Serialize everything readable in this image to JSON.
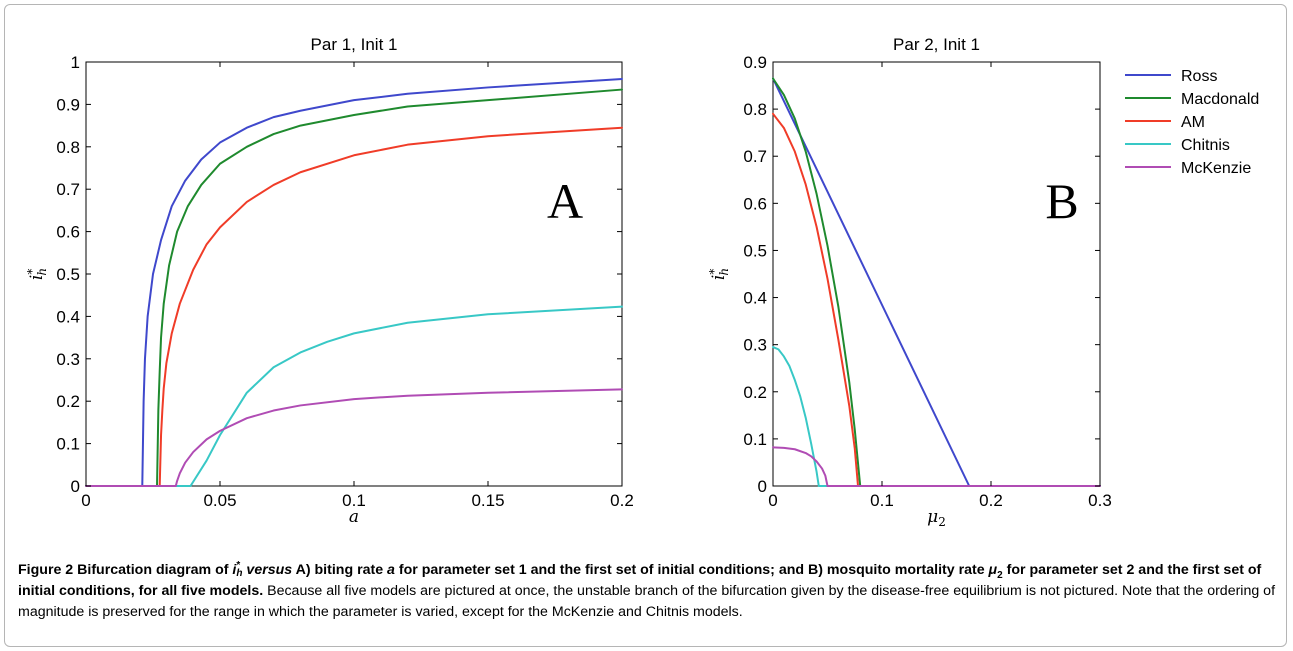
{
  "colors": {
    "Ross": "#3f48cc",
    "Macdonald": "#1f8a2e",
    "AM": "#f03c28",
    "Chitnis": "#38c8c6",
    "McKenzie": "#b04cb4"
  },
  "caption": {
    "figure_label": "Figure 2",
    "bold_text_1": " Bifurcation diagram of ",
    "bold_italic_var": "i",
    "bold_sup": "*",
    "bold_sub": "h",
    "bold_italic_versus": " versus",
    "bold_text_2": " A) biting rate ",
    "bold_italic_a": "a",
    "bold_text_3": " for parameter set 1 and the first set of initial conditions; and B) mosquito mortality rate ",
    "bold_mu": "μ",
    "bold_mu_sub": "2",
    "bold_text_4": " for parameter set 2 and the first set of initial conditions, for all five models.",
    "normal_text": " Because all five models are pictured at once, the unstable branch of the bifurcation given by the disease-free equilibrium is not pictured. Note that the ordering of magnitude is preserved for the range in which the parameter is varied, except for the McKenzie and Chitnis models."
  },
  "chart_data": [
    {
      "type": "line",
      "title": "Par 1, Init 1",
      "xlabel": "a",
      "ylabel": "i*h",
      "panel_letter": "A",
      "xlim": [
        0,
        0.2
      ],
      "ylim": [
        0,
        1
      ],
      "xticks": [
        0,
        0.05,
        0.1,
        0.15,
        0.2
      ],
      "xtick_labels": [
        "0",
        "0.05",
        "0.1",
        "0.15",
        "0.2"
      ],
      "yticks": [
        0,
        0.1,
        0.2,
        0.3,
        0.4,
        0.5,
        0.6,
        0.7,
        0.8,
        0.9,
        1
      ],
      "ytick_labels": [
        "0",
        "0.1",
        "0.2",
        "0.3",
        "0.4",
        "0.5",
        "0.6",
        "0.7",
        "0.8",
        "0.9",
        "1"
      ],
      "grid": false,
      "series": [
        {
          "name": "Ross",
          "x": [
            0,
            0.021,
            0.0215,
            0.022,
            0.023,
            0.025,
            0.028,
            0.032,
            0.037,
            0.043,
            0.05,
            0.06,
            0.07,
            0.08,
            0.1,
            0.12,
            0.15,
            0.2
          ],
          "y": [
            0,
            0,
            0.2,
            0.3,
            0.4,
            0.5,
            0.58,
            0.66,
            0.72,
            0.77,
            0.81,
            0.845,
            0.87,
            0.885,
            0.91,
            0.925,
            0.94,
            0.96
          ]
        },
        {
          "name": "Macdonald",
          "x": [
            0,
            0.0265,
            0.027,
            0.0275,
            0.028,
            0.029,
            0.031,
            0.034,
            0.038,
            0.043,
            0.05,
            0.06,
            0.07,
            0.08,
            0.1,
            0.12,
            0.15,
            0.2
          ],
          "y": [
            0,
            0,
            0.18,
            0.27,
            0.35,
            0.43,
            0.52,
            0.6,
            0.66,
            0.71,
            0.76,
            0.8,
            0.83,
            0.85,
            0.875,
            0.895,
            0.91,
            0.935
          ]
        },
        {
          "name": "AM",
          "x": [
            0,
            0.0275,
            0.028,
            0.0285,
            0.029,
            0.03,
            0.032,
            0.035,
            0.04,
            0.045,
            0.05,
            0.06,
            0.07,
            0.08,
            0.1,
            0.12,
            0.15,
            0.2
          ],
          "y": [
            0,
            0,
            0.12,
            0.18,
            0.23,
            0.29,
            0.36,
            0.43,
            0.51,
            0.57,
            0.61,
            0.67,
            0.71,
            0.74,
            0.78,
            0.805,
            0.825,
            0.845
          ]
        },
        {
          "name": "Chitnis",
          "x": [
            0,
            0.039,
            0.045,
            0.05,
            0.055,
            0.06,
            0.07,
            0.08,
            0.09,
            0.1,
            0.12,
            0.15,
            0.2
          ],
          "y": [
            0,
            0,
            0.06,
            0.12,
            0.17,
            0.22,
            0.28,
            0.315,
            0.34,
            0.36,
            0.385,
            0.405,
            0.423
          ]
        },
        {
          "name": "McKenzie",
          "x": [
            0,
            0.0335,
            0.034,
            0.035,
            0.037,
            0.04,
            0.045,
            0.05,
            0.06,
            0.07,
            0.08,
            0.1,
            0.12,
            0.15,
            0.2
          ],
          "y": [
            0,
            0,
            0.012,
            0.03,
            0.055,
            0.08,
            0.11,
            0.13,
            0.16,
            0.178,
            0.19,
            0.205,
            0.213,
            0.22,
            0.228
          ]
        }
      ]
    },
    {
      "type": "line",
      "title": "Par 2, Init 1",
      "xlabel": "μ2",
      "ylabel": "i*h",
      "panel_letter": "B",
      "xlim": [
        0,
        0.3
      ],
      "ylim": [
        0,
        0.9
      ],
      "xticks": [
        0,
        0.1,
        0.2,
        0.3
      ],
      "xtick_labels": [
        "0",
        "0.1",
        "0.2",
        "0.3"
      ],
      "yticks": [
        0,
        0.1,
        0.2,
        0.3,
        0.4,
        0.5,
        0.6,
        0.7,
        0.8,
        0.9
      ],
      "ytick_labels": [
        "0",
        "0.1",
        "0.2",
        "0.3",
        "0.4",
        "0.5",
        "0.6",
        "0.7",
        "0.8",
        "0.9"
      ],
      "grid": false,
      "legend_position": "outside-right",
      "series": [
        {
          "name": "Ross",
          "x": [
            0,
            0.18,
            0.3
          ],
          "y": [
            0.865,
            0,
            0
          ]
        },
        {
          "name": "Macdonald",
          "x": [
            0,
            0.01,
            0.02,
            0.03,
            0.04,
            0.05,
            0.06,
            0.07,
            0.075,
            0.08,
            0.3
          ],
          "y": [
            0.865,
            0.83,
            0.78,
            0.71,
            0.62,
            0.51,
            0.38,
            0.22,
            0.12,
            0,
            0
          ]
        },
        {
          "name": "AM",
          "x": [
            0,
            0.01,
            0.02,
            0.03,
            0.04,
            0.05,
            0.06,
            0.07,
            0.075,
            0.078,
            0.3
          ],
          "y": [
            0.79,
            0.76,
            0.71,
            0.64,
            0.55,
            0.44,
            0.31,
            0.17,
            0.08,
            0,
            0
          ]
        },
        {
          "name": "Chitnis",
          "x": [
            0,
            0.005,
            0.01,
            0.015,
            0.02,
            0.025,
            0.03,
            0.035,
            0.04,
            0.042,
            0.3
          ],
          "y": [
            0.295,
            0.29,
            0.275,
            0.255,
            0.225,
            0.19,
            0.145,
            0.09,
            0.03,
            0,
            0
          ]
        },
        {
          "name": "McKenzie",
          "x": [
            0,
            0.01,
            0.02,
            0.03,
            0.035,
            0.04,
            0.045,
            0.048,
            0.05,
            0.3
          ],
          "y": [
            0.082,
            0.081,
            0.078,
            0.07,
            0.063,
            0.052,
            0.037,
            0.022,
            0,
            0
          ]
        }
      ]
    }
  ]
}
